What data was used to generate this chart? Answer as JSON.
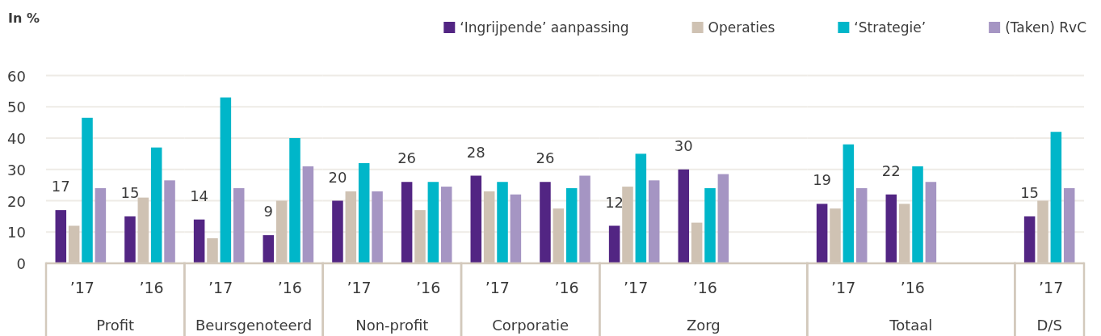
{
  "chart_data": [
    {
      "type": "bar",
      "ylabel": "In %",
      "xlabel": "Profit",
      "categories": [
        "’17",
        "’16"
      ],
      "series": [
        {
          "name": "‘Ingrijpende’ aanpassing",
          "color": "#522583",
          "values": [
            17,
            15
          ],
          "value_labels": [
            "17",
            "15"
          ]
        },
        {
          "name": "Operaties",
          "color": "#cfc2b3",
          "values": [
            12,
            21
          ]
        },
        {
          "name": "‘Strategie’",
          "color": "#00b6c9",
          "values": [
            46.5,
            37
          ]
        },
        {
          "name": "(Taken) RvC",
          "color": "#a595c3",
          "values": [
            24,
            26.5
          ]
        }
      ],
      "ylim": [
        0,
        60
      ],
      "yticks": [
        0,
        10,
        20,
        30,
        40,
        50,
        60
      ],
      "grid": "y",
      "legend": "top right"
    },
    {
      "type": "bar",
      "xlabel": "Beursgenoteerd",
      "categories": [
        "’17",
        "’16"
      ],
      "series": [
        {
          "color": "#522583",
          "values": [
            14,
            9
          ],
          "value_labels": [
            "14",
            "9"
          ]
        },
        {
          "color": "#cfc2b3",
          "values": [
            8,
            20
          ]
        },
        {
          "color": "#00b6c9",
          "values": [
            53,
            40
          ]
        },
        {
          "color": "#a595c3",
          "values": [
            24,
            31
          ]
        }
      ],
      "ylim": [
        0,
        60
      ],
      "yticks": [
        0,
        10,
        20,
        30,
        40,
        50,
        60
      ],
      "grid": "y",
      "tick_labels": "x"
    },
    {
      "type": "bar",
      "xlabel": "Non-profit",
      "categories": [
        "’17",
        "’16"
      ],
      "series": [
        {
          "color": "#522583",
          "values": [
            20,
            26
          ],
          "value_labels": [
            "20",
            "26"
          ]
        },
        {
          "color": "#cfc2b3",
          "values": [
            23,
            17
          ]
        },
        {
          "color": "#00b6c9",
          "values": [
            32,
            26
          ]
        },
        {
          "color": "#a595c3",
          "values": [
            23,
            24.5
          ]
        }
      ],
      "ylim": [
        0,
        60
      ],
      "yticks": [
        0,
        10,
        20,
        30,
        40,
        50,
        60
      ],
      "grid": "y",
      "tick_labels": "x"
    },
    {
      "type": "bar",
      "xlabel": "Corporatie",
      "categories": [
        "’17",
        "’16"
      ],
      "series": [
        {
          "color": "#522583",
          "values": [
            28,
            26
          ],
          "value_labels": [
            "28",
            "26"
          ]
        },
        {
          "color": "#cfc2b3",
          "values": [
            23,
            17.5
          ]
        },
        {
          "color": "#00b6c9",
          "values": [
            26,
            24
          ]
        },
        {
          "color": "#a595c3",
          "values": [
            22,
            28
          ]
        }
      ],
      "ylim": [
        0,
        60
      ],
      "yticks": [
        0,
        10,
        20,
        30,
        40,
        50,
        60
      ],
      "grid": "y",
      "tick_labels": "x"
    },
    {
      "type": "bar",
      "xlabel": "Zorg",
      "categories": [
        "’17",
        "’16",
        null
      ],
      "series": [
        {
          "color": "#522583",
          "values": [
            12,
            30,
            null
          ],
          "value_labels": [
            "12",
            "30",
            null
          ]
        },
        {
          "color": "#cfc2b3",
          "values": [
            24.5,
            13,
            null
          ]
        },
        {
          "color": "#00b6c9",
          "values": [
            35,
            24,
            null
          ]
        },
        {
          "color": "#a595c3",
          "values": [
            26.5,
            28.5,
            null
          ]
        }
      ],
      "ylim": [
        0,
        60
      ],
      "yticks": [
        0,
        10,
        20,
        30,
        40,
        50,
        60
      ],
      "grid": "y",
      "tick_labels": "x"
    },
    {
      "type": "bar",
      "xlabel": "Totaal",
      "categories": [
        "’17",
        "’16",
        null
      ],
      "series": [
        {
          "color": "#522583",
          "values": [
            19,
            22,
            null
          ],
          "value_labels": [
            "19",
            "22",
            null
          ]
        },
        {
          "color": "#cfc2b3",
          "values": [
            17.5,
            19,
            null
          ]
        },
        {
          "color": "#00b6c9",
          "values": [
            38,
            31,
            null
          ]
        },
        {
          "color": "#a595c3",
          "values": [
            24,
            26,
            null
          ]
        }
      ],
      "ylim": [
        0,
        60
      ],
      "yticks": [
        0,
        10,
        20,
        30,
        40,
        50,
        60
      ],
      "grid": "y",
      "tick_labels": "x"
    },
    {
      "type": "bar",
      "xlabel": "D/S",
      "categories": [
        "’17"
      ],
      "series": [
        {
          "color": "#522583",
          "values": [
            15
          ],
          "value_labels": [
            "15"
          ]
        },
        {
          "color": "#cfc2b3",
          "values": [
            20
          ]
        },
        {
          "color": "#00b6c9",
          "values": [
            42
          ]
        },
        {
          "color": "#a595c3",
          "values": [
            24
          ]
        }
      ],
      "ylim": [
        0,
        60
      ],
      "yticks": [
        0,
        10,
        20,
        30,
        40,
        50,
        60
      ],
      "grid": "y",
      "tick_labels": "x"
    }
  ]
}
